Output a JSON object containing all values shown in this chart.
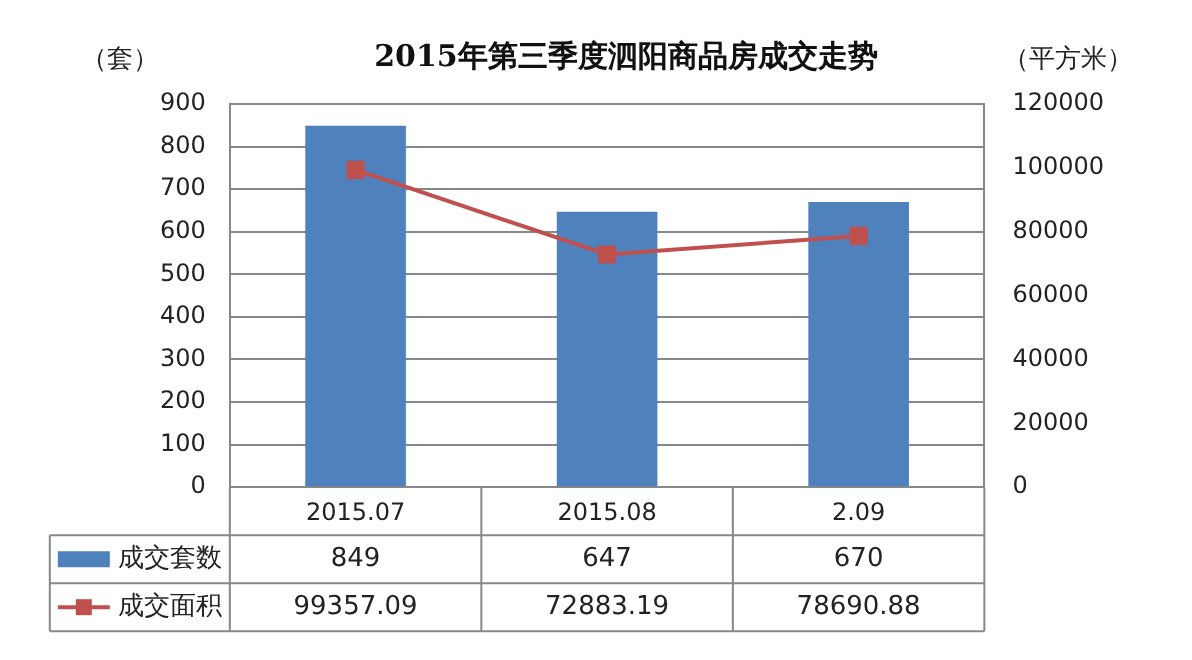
{
  "chart_data": {
    "type": "bar",
    "title": "2015年第三季度泗阳商品房成交走势",
    "ylabel": "（套）",
    "y2label": "（平方米）",
    "categories": [
      "2015.07",
      "2015.08",
      "2.09"
    ],
    "series": [
      {
        "name": "成交套数",
        "color": "#4f81bd",
        "values": [
          849,
          647,
          670
        ]
      },
      {
        "name": "成交面积",
        "type": "line",
        "axis": "y2",
        "color": "#c0504d",
        "values": [
          99357.09,
          72883.19,
          78690.88
        ]
      }
    ],
    "ylim": [
      0,
      900
    ],
    "yticks": [
      0,
      100,
      200,
      300,
      400,
      500,
      600,
      700,
      800,
      900
    ],
    "y2lim": [
      0,
      120000
    ],
    "y2ticks": [
      0,
      20000,
      40000,
      60000,
      80000,
      100000,
      120000
    ],
    "grid": "y",
    "legend": "bottom",
    "marker": "square",
    "line_style": "solid",
    "data_labels": true
  }
}
